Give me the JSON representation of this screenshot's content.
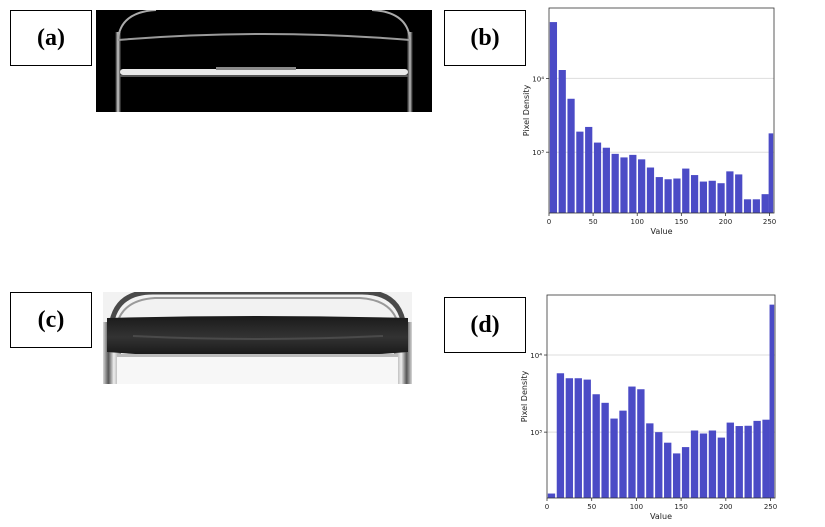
{
  "panel_labels": {
    "a": "(a)",
    "b": "(b)",
    "c": "(c)",
    "d": "(d)"
  },
  "chart_data": [
    {
      "type": "bar",
      "panel": "b",
      "xlabel": "Value",
      "ylabel": "Pixel Density",
      "y_scale": "log",
      "xlim": [
        0,
        255
      ],
      "ylim": [
        150,
        90000
      ],
      "x_ticks": [
        0,
        50,
        100,
        150,
        200,
        250
      ],
      "x_tick_labels": [
        "0",
        "50",
        "100",
        "150",
        "200",
        "250"
      ],
      "y_ticks": [
        1000,
        10000
      ],
      "y_tick_labels": [
        "10³",
        "10⁴"
      ],
      "grid": "horizontal",
      "color": "#4b4bc6",
      "bin_width": 10,
      "x": [
        5,
        15,
        25,
        35,
        45,
        55,
        65,
        75,
        85,
        95,
        105,
        115,
        125,
        135,
        145,
        155,
        165,
        175,
        185,
        195,
        205,
        215,
        225,
        235,
        245,
        253
      ],
      "values": [
        58000,
        13000,
        5300,
        1900,
        2200,
        1350,
        1150,
        950,
        850,
        920,
        800,
        620,
        460,
        430,
        440,
        600,
        490,
        400,
        410,
        380,
        550,
        500,
        230,
        230,
        270,
        1800
      ]
    },
    {
      "type": "bar",
      "panel": "d",
      "xlabel": "Value",
      "ylabel": "Pixel Density",
      "y_scale": "log",
      "xlim": [
        0,
        255
      ],
      "ylim": [
        140,
        60000
      ],
      "x_ticks": [
        0,
        50,
        100,
        150,
        200,
        250
      ],
      "x_tick_labels": [
        "0",
        "50",
        "100",
        "150",
        "200",
        "250"
      ],
      "y_ticks": [
        1000,
        10000
      ],
      "y_tick_labels": [
        "10³",
        "10⁴"
      ],
      "grid": "horizontal",
      "color": "#4b4bc6",
      "bin_width": 10,
      "x": [
        5,
        15,
        25,
        35,
        45,
        55,
        65,
        75,
        85,
        95,
        105,
        115,
        125,
        135,
        145,
        155,
        165,
        175,
        185,
        195,
        205,
        215,
        225,
        235,
        245,
        253
      ],
      "values": [
        160,
        5800,
        5000,
        5000,
        4800,
        3100,
        2400,
        1500,
        1900,
        3900,
        3600,
        1300,
        1000,
        730,
        530,
        640,
        1050,
        960,
        1050,
        850,
        1330,
        1200,
        1210,
        1400,
        1450,
        45000
      ]
    }
  ]
}
